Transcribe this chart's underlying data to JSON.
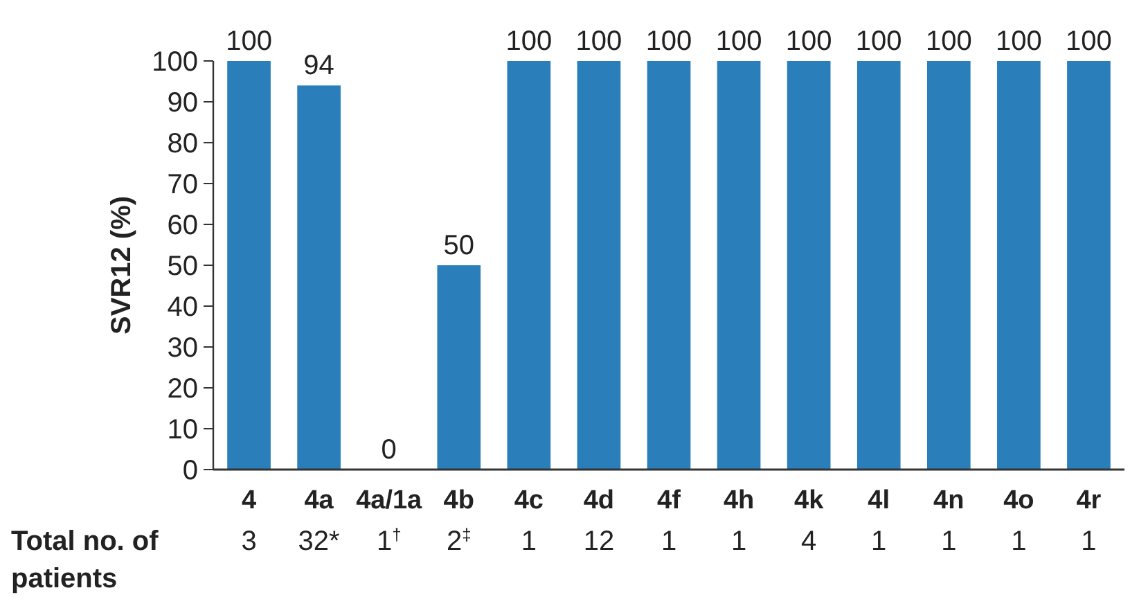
{
  "chart_data": {
    "type": "bar",
    "ylabel": "SVR12 (%)",
    "categories": [
      "4",
      "4a",
      "4a/1a",
      "4b",
      "4c",
      "4d",
      "4f",
      "4h",
      "4k",
      "4l",
      "4n",
      "4o",
      "4r"
    ],
    "values": [
      100,
      94,
      0,
      50,
      100,
      100,
      100,
      100,
      100,
      100,
      100,
      100,
      100
    ],
    "color": "#2a7fba",
    "ylim": [
      0,
      100
    ],
    "yticks": [
      0,
      10,
      20,
      30,
      40,
      50,
      60,
      70,
      80,
      90,
      100
    ],
    "data_labels": true,
    "annotations": [
      "Total no. of patients",
      "3",
      "32*",
      "1$^{†}$",
      "2$^{‡}$",
      "1",
      "12",
      "1",
      "1",
      "4",
      "1",
      "1",
      "1",
      "1"
    ]
  }
}
